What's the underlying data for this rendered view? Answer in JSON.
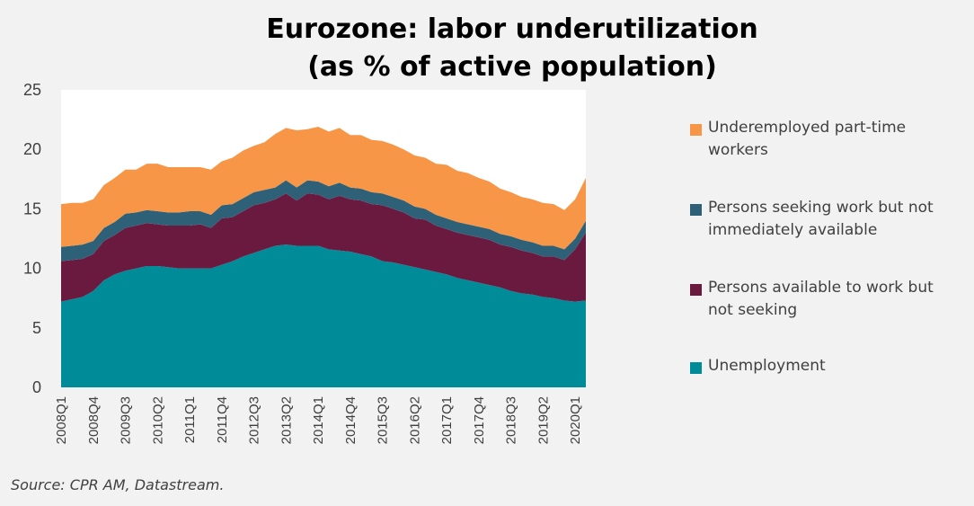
{
  "chart_data": {
    "type": "area",
    "stacked": true,
    "title_line1": "Eurozone: labor underutilization",
    "title_line2": "(as % of active population)",
    "source": "Source: CPR AM, Datastream.",
    "ylim": [
      0,
      25
    ],
    "yticks": [
      0,
      5,
      10,
      15,
      20,
      25
    ],
    "grid": false,
    "legend_position": "right",
    "x": [
      "2008Q1",
      "2008Q2",
      "2008Q3",
      "2008Q4",
      "2009Q1",
      "2009Q2",
      "2009Q3",
      "2009Q4",
      "2010Q1",
      "2010Q2",
      "2010Q3",
      "2010Q4",
      "2011Q1",
      "2011Q2",
      "2011Q3",
      "2011Q4",
      "2012Q1",
      "2012Q2",
      "2012Q3",
      "2012Q4",
      "2013Q1",
      "2013Q2",
      "2013Q3",
      "2013Q4",
      "2014Q1",
      "2014Q2",
      "2014Q3",
      "2014Q4",
      "2015Q1",
      "2015Q2",
      "2015Q3",
      "2015Q4",
      "2016Q1",
      "2016Q2",
      "2016Q3",
      "2016Q4",
      "2017Q1",
      "2017Q2",
      "2017Q3",
      "2017Q4",
      "2018Q1",
      "2018Q2",
      "2018Q3",
      "2018Q4",
      "2019Q1",
      "2019Q2",
      "2019Q3",
      "2019Q4",
      "2020Q1",
      "2020Q2"
    ],
    "xtick_labels": [
      "2008Q1",
      "2008Q4",
      "2009Q3",
      "2010Q2",
      "2011Q1",
      "2011Q4",
      "2012Q3",
      "2013Q2",
      "2014Q1",
      "2014Q4",
      "2015Q3",
      "2016Q2",
      "2017Q1",
      "2017Q4",
      "2018Q3",
      "2019Q2",
      "2020Q1"
    ],
    "series": [
      {
        "name": "Unemployment",
        "color": "#008b99",
        "values": [
          7.2,
          7.4,
          7.6,
          8.1,
          9.0,
          9.5,
          9.8,
          10.0,
          10.2,
          10.2,
          10.1,
          10.0,
          10.0,
          10.0,
          10.0,
          10.3,
          10.6,
          11.0,
          11.3,
          11.6,
          11.9,
          12.0,
          11.9,
          11.9,
          11.9,
          11.6,
          11.5,
          11.4,
          11.2,
          11.0,
          10.6,
          10.5,
          10.3,
          10.1,
          9.9,
          9.7,
          9.5,
          9.2,
          9.0,
          8.8,
          8.6,
          8.4,
          8.1,
          7.9,
          7.8,
          7.6,
          7.5,
          7.3,
          7.2,
          7.3
        ]
      },
      {
        "name": "Persons available to work but not seeking",
        "color": "#6b1a3f",
        "values": [
          3.4,
          3.3,
          3.2,
          3.1,
          3.3,
          3.3,
          3.6,
          3.6,
          3.6,
          3.5,
          3.5,
          3.6,
          3.6,
          3.7,
          3.4,
          3.9,
          3.7,
          3.8,
          4.0,
          3.9,
          3.9,
          4.3,
          3.8,
          4.4,
          4.3,
          4.2,
          4.6,
          4.4,
          4.5,
          4.4,
          4.7,
          4.5,
          4.4,
          4.1,
          4.2,
          3.9,
          3.8,
          3.8,
          3.8,
          3.8,
          3.8,
          3.6,
          3.7,
          3.6,
          3.5,
          3.4,
          3.5,
          3.4,
          4.4,
          5.7
        ]
      },
      {
        "name": "Persons seeking work but not immediately available",
        "color": "#2e6178",
        "values": [
          1.2,
          1.2,
          1.2,
          1.1,
          1.1,
          1.1,
          1.2,
          1.1,
          1.1,
          1.1,
          1.1,
          1.1,
          1.2,
          1.1,
          1.1,
          1.1,
          1.1,
          1.1,
          1.1,
          1.1,
          1.0,
          1.1,
          1.1,
          1.1,
          1.1,
          1.1,
          1.1,
          1.0,
          1.0,
          1.0,
          1.0,
          1.0,
          1.0,
          1.0,
          0.9,
          0.9,
          0.9,
          0.9,
          0.9,
          0.9,
          0.9,
          0.9,
          0.9,
          0.9,
          0.9,
          0.9,
          0.9,
          0.9,
          0.9,
          1.0
        ]
      },
      {
        "name": "Underemployed part-time workers",
        "color": "#f79646",
        "values": [
          3.6,
          3.6,
          3.5,
          3.5,
          3.6,
          3.7,
          3.7,
          3.6,
          3.9,
          4.0,
          3.8,
          3.8,
          3.7,
          3.7,
          3.8,
          3.7,
          3.9,
          4.0,
          3.9,
          4.0,
          4.5,
          4.4,
          4.8,
          4.3,
          4.6,
          4.6,
          4.6,
          4.4,
          4.5,
          4.4,
          4.4,
          4.4,
          4.3,
          4.3,
          4.3,
          4.3,
          4.5,
          4.3,
          4.3,
          4.1,
          4.0,
          3.8,
          3.7,
          3.6,
          3.6,
          3.6,
          3.5,
          3.3,
          3.3,
          3.6
        ]
      }
    ]
  },
  "legend": [
    {
      "line1": "Underemployed part-time",
      "line2": "workers",
      "color": "#f79646"
    },
    {
      "line1": "Persons seeking work but not",
      "line2": "immediately available",
      "color": "#2e6178"
    },
    {
      "line1": "Persons available to work but",
      "line2": "not seeking",
      "color": "#6b1a3f"
    },
    {
      "line1": "Unemployment",
      "line2": "",
      "color": "#008b99"
    }
  ]
}
